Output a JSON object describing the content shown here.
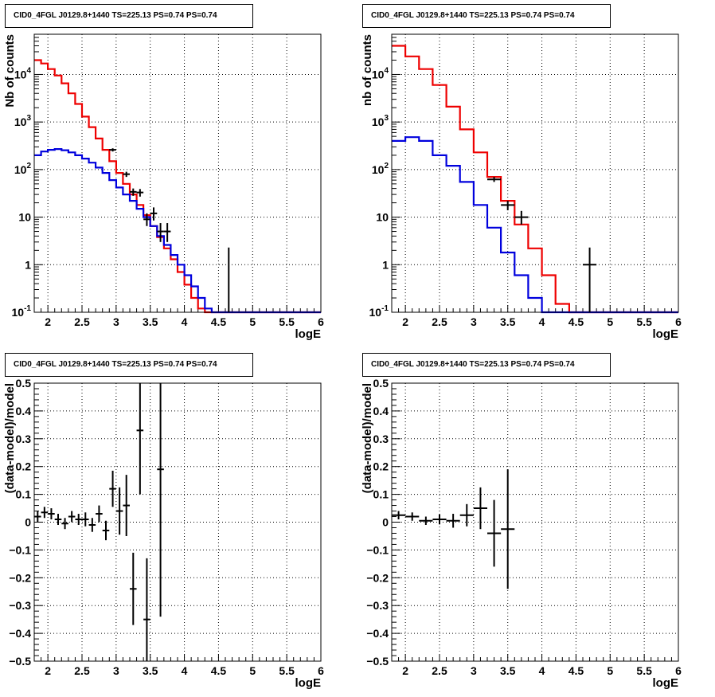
{
  "chart_data": [
    {
      "type": "step-histogram",
      "title": "CID0_4FGL J0129.8+1440 TS=225.13 PS=0.74 PS=0.74",
      "xlabel": "logE",
      "ylabel": "Nb of counts",
      "xlim": [
        1.8,
        6.0
      ],
      "ylim": [
        0.1,
        70000
      ],
      "yscale": "log",
      "grid": true,
      "x_ticks": [
        "2",
        "2.5",
        "3",
        "3.5",
        "4",
        "4.5",
        "5",
        "5.5",
        "6"
      ],
      "y_ticks": [
        "10^-1",
        "1",
        "10",
        "10^2",
        "10^3",
        "10^4"
      ],
      "bin_edges": [
        1.8,
        1.9,
        2.0,
        2.1,
        2.2,
        2.3,
        2.4,
        2.5,
        2.6,
        2.7,
        2.8,
        2.9,
        3.0,
        3.1,
        3.2,
        3.3,
        3.4,
        3.5,
        3.6,
        3.7,
        3.8,
        3.9,
        4.0,
        4.1,
        4.2,
        4.3,
        4.4,
        4.5,
        4.6,
        4.7,
        4.8,
        4.9,
        5.0,
        5.1,
        5.2,
        5.3,
        5.4,
        5.5,
        5.6,
        5.7,
        5.8,
        5.9,
        6.0
      ],
      "series": [
        {
          "color": "#ee0000",
          "values": [
            20000,
            17000,
            13000,
            9500,
            6500,
            4000,
            2400,
            1300,
            780,
            450,
            260,
            150,
            85,
            50,
            30,
            18,
            11,
            6.5,
            3.8,
            2.2,
            1.3,
            0.7,
            0.38,
            0.2,
            0.12,
            0.1,
            0.1,
            0.1,
            0.1,
            0.1,
            0.1,
            0.1,
            0.1,
            0.1,
            0.1,
            0.1,
            0.1,
            0.1,
            0.1,
            0.1,
            0.1,
            0.1
          ]
        },
        {
          "color": "#0000dd",
          "values": [
            200,
            240,
            260,
            270,
            255,
            230,
            200,
            170,
            140,
            110,
            85,
            60,
            42,
            30,
            22,
            15,
            10,
            6.5,
            4,
            2.6,
            1.6,
            1,
            0.6,
            0.35,
            0.2,
            0.12,
            0.1,
            0.1,
            0.1,
            0.1,
            0.1,
            0.1,
            0.1,
            0.1,
            0.1,
            0.1,
            0.1,
            0.1,
            0.1,
            0.1,
            0.1,
            0.1
          ]
        }
      ],
      "points": [
        {
          "x": 2.95,
          "y": 260,
          "ex": 0.05,
          "ylo": 240,
          "yhi": 280
        },
        {
          "x": 3.15,
          "y": 80,
          "ex": 0.05,
          "ylo": 70,
          "yhi": 90
        },
        {
          "x": 3.25,
          "y": 34,
          "ex": 0.05,
          "ylo": 28,
          "yhi": 40
        },
        {
          "x": 3.35,
          "y": 33,
          "ex": 0.05,
          "ylo": 27,
          "yhi": 39
        },
        {
          "x": 3.45,
          "y": 9,
          "ex": 0.05,
          "ylo": 6.5,
          "yhi": 12
        },
        {
          "x": 3.55,
          "y": 12,
          "ex": 0.05,
          "ylo": 8.5,
          "yhi": 16
        },
        {
          "x": 3.65,
          "y": 5,
          "ex": 0.05,
          "ylo": 3,
          "yhi": 7.5
        },
        {
          "x": 3.75,
          "y": 5,
          "ex": 0.05,
          "ylo": 3,
          "yhi": 7.5
        },
        {
          "x": 4.65,
          "y": 1,
          "ex": 0.0,
          "ylo": 0.1,
          "yhi": 2.3
        }
      ]
    },
    {
      "type": "step-histogram",
      "title": "CID0_4FGL J0129.8+1440 TS=225.13 PS=0.74 PS=0.74",
      "xlabel": "logE",
      "ylabel": "nb of counts",
      "xlim": [
        1.8,
        6.0
      ],
      "ylim": [
        0.1,
        70000
      ],
      "yscale": "log",
      "grid": true,
      "x_ticks": [
        "2",
        "2.5",
        "3",
        "3.5",
        "4",
        "4.5",
        "5",
        "5.5",
        "6"
      ],
      "y_ticks": [
        "10^-1",
        "1",
        "10",
        "10^2",
        "10^3",
        "10^4"
      ],
      "bin_edges": [
        1.8,
        2.0,
        2.2,
        2.4,
        2.6,
        2.8,
        3.0,
        3.2,
        3.4,
        3.6,
        3.8,
        4.0,
        4.2,
        4.4,
        4.6,
        4.8,
        5.0,
        5.2,
        5.4,
        5.6,
        5.8,
        6.0
      ],
      "series": [
        {
          "color": "#ee0000",
          "values": [
            40000,
            24000,
            13000,
            6000,
            2100,
            700,
            230,
            70,
            22,
            7,
            2.2,
            0.6,
            0.15,
            0.1,
            0.1,
            0.1,
            0.1,
            0.1,
            0.1,
            0.1,
            0.1
          ]
        },
        {
          "color": "#0000dd",
          "values": [
            400,
            480,
            400,
            200,
            120,
            55,
            18,
            6,
            1.8,
            0.6,
            0.2,
            0.1,
            0.1,
            0.1,
            0.1,
            0.1,
            0.1,
            0.1,
            0.1,
            0.1,
            0.1
          ]
        }
      ],
      "points": [
        {
          "x": 3.3,
          "y": 62,
          "ex": 0.1,
          "ylo": 55,
          "yhi": 70
        },
        {
          "x": 3.5,
          "y": 18,
          "ex": 0.1,
          "ylo": 14,
          "yhi": 22
        },
        {
          "x": 3.7,
          "y": 10,
          "ex": 0.1,
          "ylo": 7,
          "yhi": 13.5
        },
        {
          "x": 4.7,
          "y": 1,
          "ex": 0.1,
          "ylo": 0.1,
          "yhi": 2.3
        }
      ]
    },
    {
      "type": "scatter",
      "title": "CID0_4FGL J0129.8+1440 TS=225.13 PS=0.74 PS=0.74",
      "xlabel": "logE",
      "ylabel": "(data-model)/model",
      "xlim": [
        1.8,
        6.0
      ],
      "ylim": [
        -0.5,
        0.5
      ],
      "grid": true,
      "x_ticks": [
        "2",
        "2.5",
        "3",
        "3.5",
        "4",
        "4.5",
        "5",
        "5.5",
        "6"
      ],
      "y_ticks": [
        "−0.5",
        "−0.4",
        "−0.3",
        "−0.2",
        "−0.1",
        "0",
        "0.1",
        "0.2",
        "0.3",
        "0.4",
        "0.5"
      ],
      "points": [
        {
          "x": 1.85,
          "y": 0.02,
          "ex": 0.05,
          "ey": 0.02
        },
        {
          "x": 1.95,
          "y": 0.035,
          "ex": 0.05,
          "ey": 0.02
        },
        {
          "x": 2.05,
          "y": 0.03,
          "ex": 0.05,
          "ey": 0.02
        },
        {
          "x": 2.15,
          "y": 0.01,
          "ex": 0.05,
          "ey": 0.02
        },
        {
          "x": 2.25,
          "y": -0.005,
          "ex": 0.05,
          "ey": 0.02
        },
        {
          "x": 2.35,
          "y": 0.02,
          "ex": 0.05,
          "ey": 0.02
        },
        {
          "x": 2.45,
          "y": 0.01,
          "ex": 0.05,
          "ey": 0.02
        },
        {
          "x": 2.55,
          "y": 0.01,
          "ex": 0.05,
          "ey": 0.025
        },
        {
          "x": 2.65,
          "y": -0.01,
          "ex": 0.05,
          "ey": 0.025
        },
        {
          "x": 2.75,
          "y": 0.03,
          "ex": 0.05,
          "ey": 0.03
        },
        {
          "x": 2.85,
          "y": -0.03,
          "ex": 0.05,
          "ey": 0.035
        },
        {
          "x": 2.95,
          "y": 0.12,
          "ex": 0.05,
          "ey": 0.065
        },
        {
          "x": 3.05,
          "y": 0.04,
          "ex": 0.05,
          "ey": 0.085
        },
        {
          "x": 3.15,
          "y": 0.06,
          "ex": 0.05,
          "ey": 0.11
        },
        {
          "x": 3.25,
          "y": -0.24,
          "ex": 0.05,
          "ey": 0.13
        },
        {
          "x": 3.35,
          "y": 0.33,
          "ex": 0.05,
          "ey": 0.23
        },
        {
          "x": 3.45,
          "y": -0.35,
          "ex": 0.05,
          "ey": 0.22
        },
        {
          "x": 3.65,
          "y": 0.19,
          "ex": 0.05,
          "ey": 0.53
        }
      ]
    },
    {
      "type": "scatter",
      "title": "CID0_4FGL J0129.8+1440 TS=225.13 PS=0.74 PS=0.74",
      "xlabel": "logE",
      "ylabel": "(data-model)/model",
      "xlim": [
        1.8,
        6.0
      ],
      "ylim": [
        -0.5,
        0.5
      ],
      "grid": true,
      "x_ticks": [
        "2",
        "2.5",
        "3",
        "3.5",
        "4",
        "4.5",
        "5",
        "5.5",
        "6"
      ],
      "y_ticks": [
        "−0.5",
        "−0.4",
        "−0.3",
        "−0.2",
        "−0.1",
        "0",
        "0.1",
        "0.2",
        "0.3",
        "0.4",
        "0.5"
      ],
      "points": [
        {
          "x": 1.9,
          "y": 0.025,
          "ex": 0.1,
          "ey": 0.015
        },
        {
          "x": 2.1,
          "y": 0.02,
          "ex": 0.1,
          "ey": 0.015
        },
        {
          "x": 2.3,
          "y": 0.005,
          "ex": 0.1,
          "ey": 0.015
        },
        {
          "x": 2.5,
          "y": 0.01,
          "ex": 0.1,
          "ey": 0.018
        },
        {
          "x": 2.7,
          "y": 0.005,
          "ex": 0.1,
          "ey": 0.025
        },
        {
          "x": 2.9,
          "y": 0.025,
          "ex": 0.1,
          "ey": 0.04
        },
        {
          "x": 3.1,
          "y": 0.05,
          "ex": 0.1,
          "ey": 0.075
        },
        {
          "x": 3.3,
          "y": -0.04,
          "ex": 0.1,
          "ey": 0.12
        },
        {
          "x": 3.5,
          "y": -0.025,
          "ex": 0.1,
          "ey": 0.215
        }
      ]
    }
  ]
}
